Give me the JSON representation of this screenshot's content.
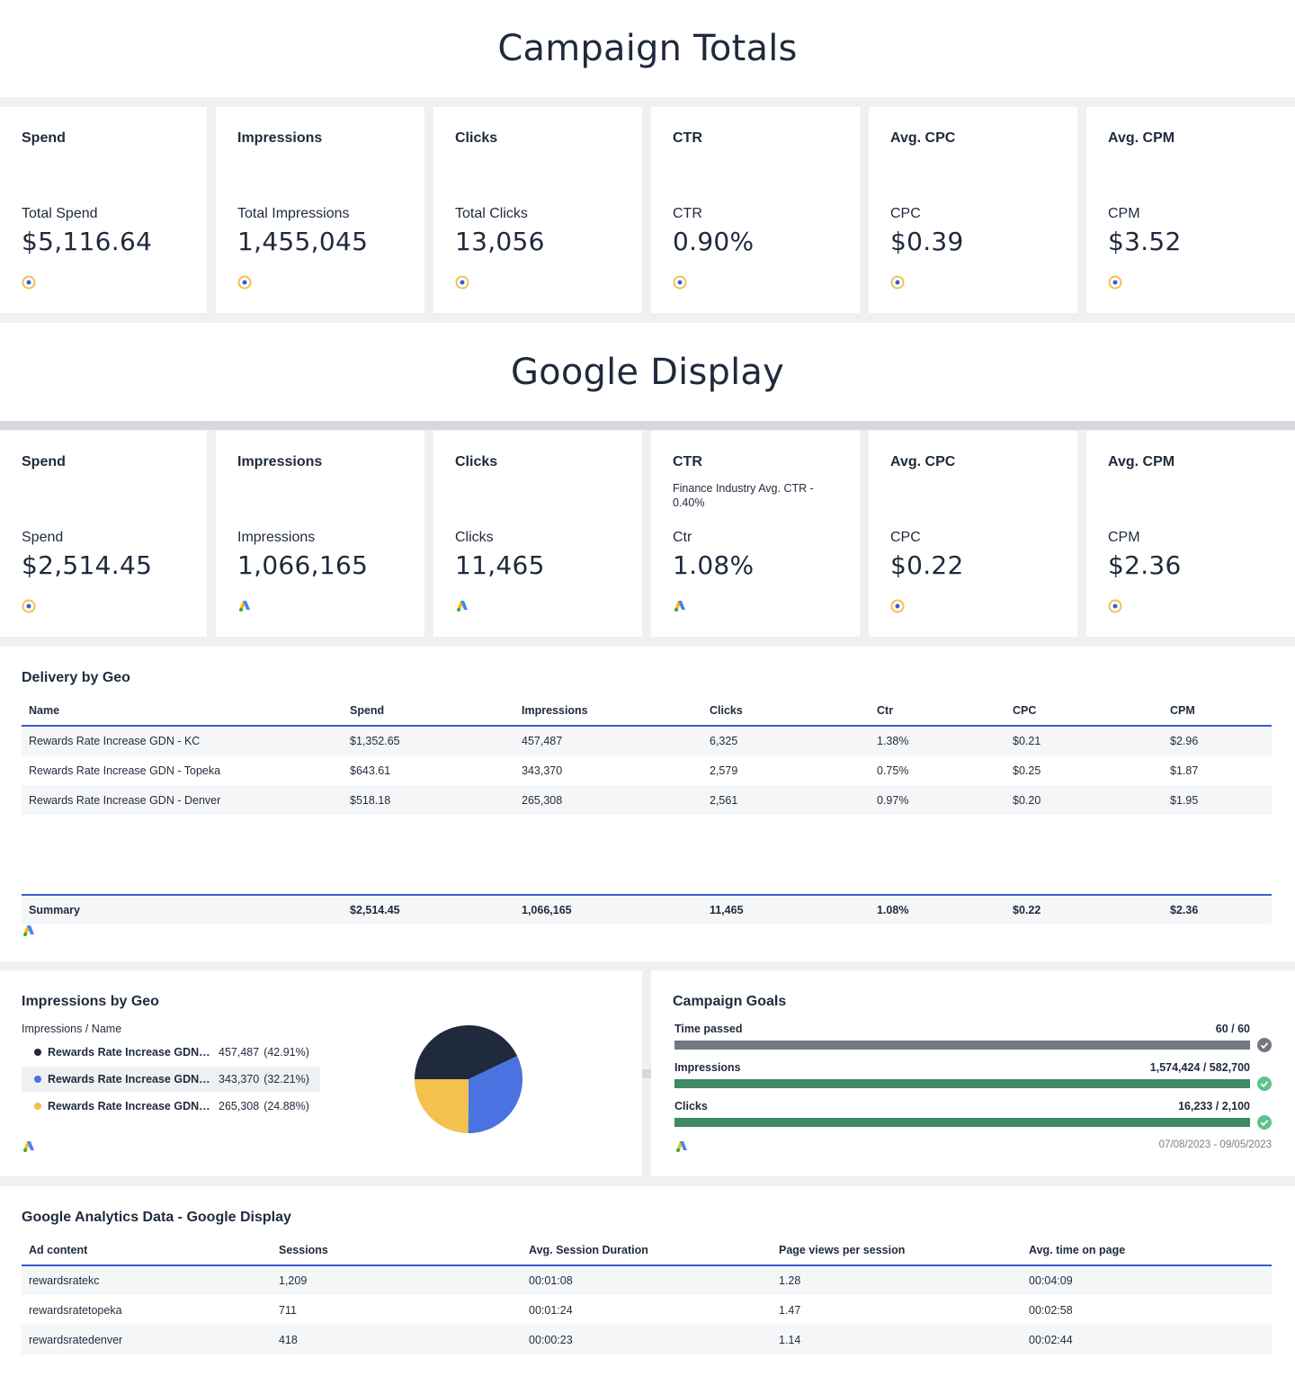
{
  "campaign_totals": {
    "title": "Campaign Totals",
    "cards": [
      {
        "title": "Spend",
        "label": "Total Spend",
        "value": "$5,116.64",
        "icon": "target-icon"
      },
      {
        "title": "Impressions",
        "label": "Total Impressions",
        "value": "1,455,045",
        "icon": "target-icon"
      },
      {
        "title": "Clicks",
        "label": "Total Clicks",
        "value": "13,056",
        "icon": "target-icon"
      },
      {
        "title": "CTR",
        "label": "CTR",
        "value": "0.90%",
        "icon": "target-icon"
      },
      {
        "title": "Avg. CPC",
        "label": "CPC",
        "value": "$0.39",
        "icon": "target-icon"
      },
      {
        "title": "Avg. CPM",
        "label": "CPM",
        "value": "$3.52",
        "icon": "target-icon"
      }
    ]
  },
  "google_display": {
    "title": "Google Display",
    "cards": [
      {
        "title": "Spend",
        "subtitle": "",
        "label": "Spend",
        "value": "$2,514.45",
        "icon": "target-icon"
      },
      {
        "title": "Impressions",
        "subtitle": "",
        "label": "Impressions",
        "value": "1,066,165",
        "icon": "google-ads-icon"
      },
      {
        "title": "Clicks",
        "subtitle": "",
        "label": "Clicks",
        "value": "11,465",
        "icon": "google-ads-icon"
      },
      {
        "title": "CTR",
        "subtitle": "Finance Industry Avg. CTR - 0.40%",
        "label": "Ctr",
        "value": "1.08%",
        "icon": "google-ads-icon"
      },
      {
        "title": "Avg. CPC",
        "subtitle": "",
        "label": "CPC",
        "value": "$0.22",
        "icon": "target-icon"
      },
      {
        "title": "Avg. CPM",
        "subtitle": "",
        "label": "CPM",
        "value": "$2.36",
        "icon": "target-icon"
      }
    ]
  },
  "delivery_by_geo": {
    "title": "Delivery by Geo",
    "columns": [
      "Name",
      "Spend",
      "Impressions",
      "Clicks",
      "Ctr",
      "CPC",
      "CPM"
    ],
    "rows": [
      [
        "Rewards Rate Increase GDN - KC",
        "$1,352.65",
        "457,487",
        "6,325",
        "1.38%",
        "$0.21",
        "$2.96"
      ],
      [
        "Rewards Rate Increase GDN - Topeka",
        "$643.61",
        "343,370",
        "2,579",
        "0.75%",
        "$0.25",
        "$1.87"
      ],
      [
        "Rewards Rate Increase GDN - Denver",
        "$518.18",
        "265,308",
        "2,561",
        "0.97%",
        "$0.20",
        "$1.95"
      ]
    ],
    "summary": [
      "Summary",
      "$2,514.45",
      "1,066,165",
      "11,465",
      "1.08%",
      "$0.22",
      "$2.36"
    ]
  },
  "impressions_by_geo": {
    "title": "Impressions by Geo",
    "subtitle": "Impressions / Name",
    "legend": [
      {
        "name": "Rewards Rate Increase GDN - KC",
        "value": "457,487",
        "pct": "(42.91%)",
        "color": "#1f2a3c"
      },
      {
        "name": "Rewards Rate Increase GDN - Topeka",
        "value": "343,370",
        "pct": "(32.21%)",
        "color": "#4a72e0"
      },
      {
        "name": "Rewards Rate Increase GDN - Denver",
        "value": "265,308",
        "pct": "(24.88%)",
        "color": "#f2c14e"
      }
    ],
    "chart_data": {
      "type": "pie",
      "title": "Impressions by Geo",
      "categories": [
        "Rewards Rate Increase GDN - KC",
        "Rewards Rate Increase GDN - Topeka",
        "Rewards Rate Increase GDN - Denver"
      ],
      "values": [
        457487,
        343370,
        265308
      ],
      "colors": [
        "#1f2a3c",
        "#4a72e0",
        "#f2c14e"
      ]
    }
  },
  "campaign_goals": {
    "title": "Campaign Goals",
    "goals": [
      {
        "label": "Time passed",
        "value": "60 / 60",
        "progress": 1.0,
        "color": "#73777f",
        "check_color": "#73777f"
      },
      {
        "label": "Impressions",
        "value": "1,574,424 / 582,700",
        "progress": 1.0,
        "color": "#3e8a63",
        "check_color": "#5ec28a"
      },
      {
        "label": "Clicks",
        "value": "16,233 / 2,100",
        "progress": 1.0,
        "color": "#3e8a63",
        "check_color": "#5ec28a"
      }
    ],
    "date_range": "07/08/2023 - 09/05/2023"
  },
  "analytics": {
    "title": "Google Analytics Data - Google Display",
    "columns": [
      "Ad content",
      "Sessions",
      "Avg. Session Duration",
      "Page views per session",
      "Avg. time on page"
    ],
    "rows": [
      [
        "rewardsratekc",
        "1,209",
        "00:01:08",
        "1.28",
        "00:04:09"
      ],
      [
        "rewardsratetopeka",
        "711",
        "00:01:24",
        "1.47",
        "00:02:58"
      ],
      [
        "rewardsratedenver",
        "418",
        "00:00:23",
        "1.14",
        "00:02:44"
      ]
    ]
  }
}
